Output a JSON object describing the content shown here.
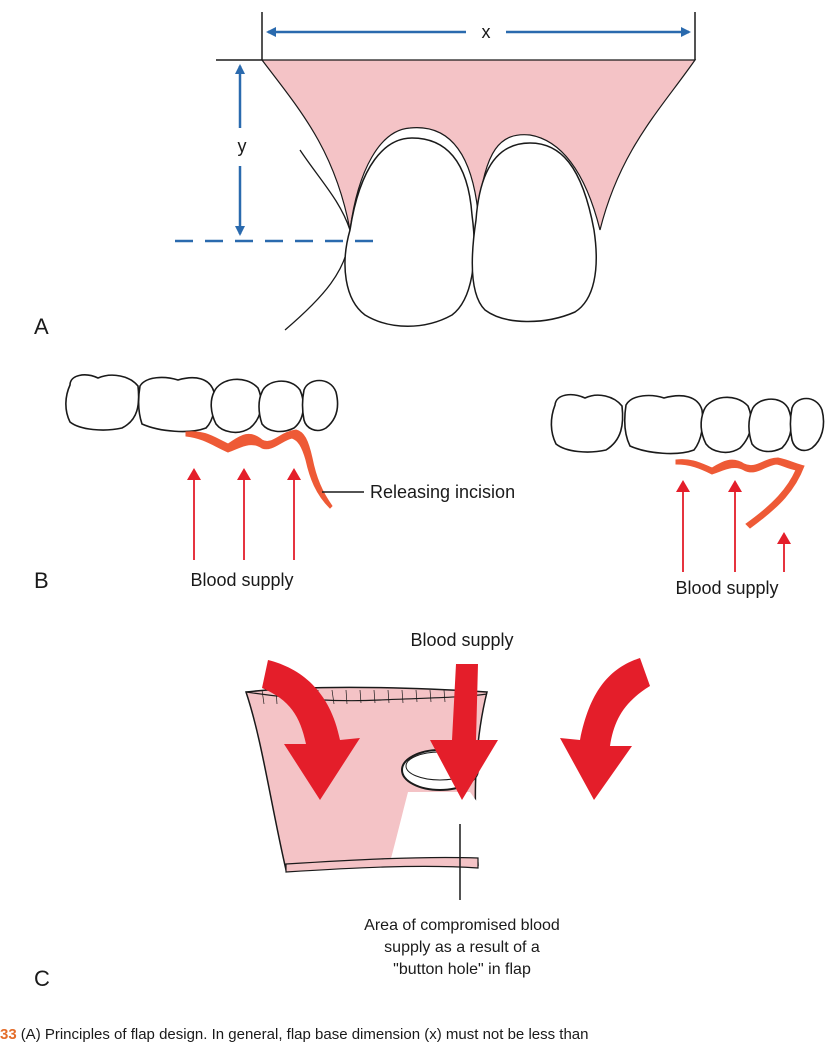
{
  "panels": {
    "a": {
      "letter": "A",
      "x_label": "x",
      "y_label": "y"
    },
    "b": {
      "letter": "B",
      "releasing_incision_label": "Releasing incision",
      "blood_supply_left": "Blood supply",
      "blood_supply_right": "Blood supply"
    },
    "c": {
      "letter": "C",
      "blood_supply_label": "Blood supply",
      "area_label_lines": [
        "Area of compromised blood",
        "supply as a result of a",
        "\"button hole\" in flap"
      ]
    }
  },
  "caption": {
    "figure_number": "33",
    "text": "(A) Principles of flap design. In general, flap base dimension (x) must not be less than"
  },
  "colors": {
    "flap_fill": "#f4c3c6",
    "arrow_blue": "#2a6aae",
    "arrow_red": "#e41e2a",
    "incision_orange": "#ee5a36"
  }
}
